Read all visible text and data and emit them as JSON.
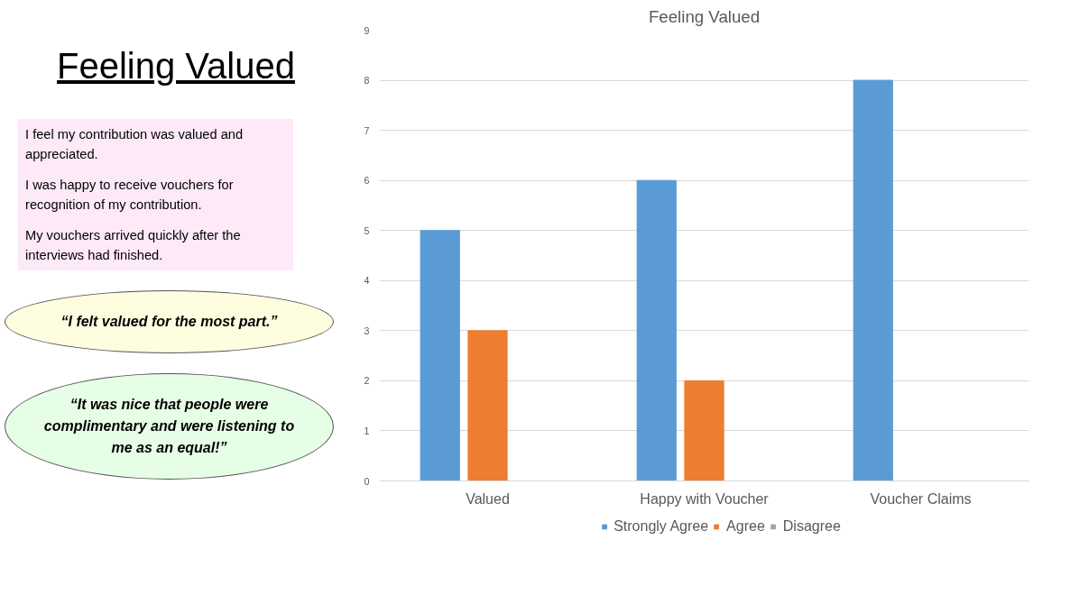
{
  "chart_data": {
    "type": "bar",
    "title": "Feeling Valued",
    "categories": [
      "Valued",
      "Happy with Voucher",
      "Voucher Claims"
    ],
    "series": [
      {
        "name": "Strongly Agree",
        "color": "#5b9bd5",
        "values": [
          5,
          6,
          8
        ]
      },
      {
        "name": "Agree",
        "color": "#ed7d31",
        "values": [
          3,
          2,
          0
        ]
      },
      {
        "name": "Disagree",
        "color": "#a5a5a5",
        "values": [
          0,
          0,
          0
        ]
      }
    ],
    "ylim": [
      0,
      9
    ],
    "yticks": [
      0,
      1,
      2,
      3,
      4,
      5,
      6,
      7,
      8,
      9
    ],
    "grid": "y",
    "legend": "bottom",
    "annotations": [
      "Feeling Valued",
      "I feel my contribution was valued and appreciated.",
      "I was happy to receive vouchers for recognition of my contribution.",
      "My vouchers arrived quickly after the interviews had finished.",
      "“I felt valued for the most part.”",
      "“It was nice that people were complimentary and were listening to me as an equal!”"
    ]
  }
}
